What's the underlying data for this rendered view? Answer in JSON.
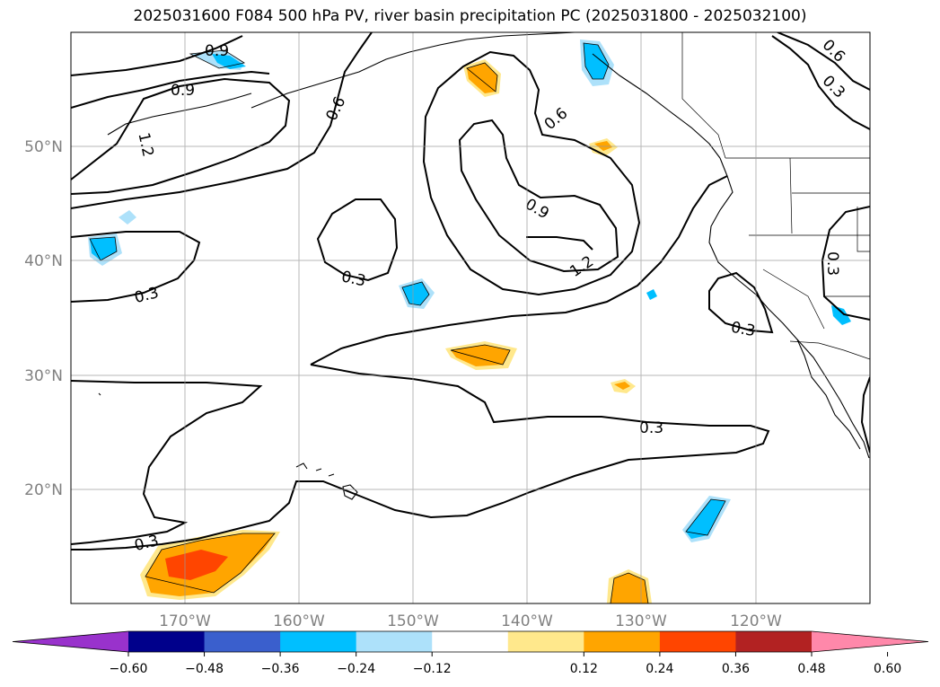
{
  "title": "2025031600 F084 500 hPa PV, river basin precipitation PC (2025031800 - 2025032100)",
  "map": {
    "projection": "PlateCarree",
    "lon_range": [
      -180,
      -110
    ],
    "lat_range": [
      10,
      60
    ],
    "lat_ticks": [
      "50°N",
      "40°N",
      "30°N",
      "20°N"
    ],
    "lon_ticks": [
      "170°W",
      "160°W",
      "150°W",
      "140°W",
      "130°W",
      "120°W"
    ],
    "grid": true
  },
  "pv_contour_labels": [
    "0.9",
    "0.9",
    "1.2",
    "0.6",
    "0.6",
    "0.6",
    "0.3",
    "0.9",
    "1.2",
    "0.3",
    "0.3",
    "0.3",
    "0.3",
    "0.3",
    "0.3"
  ],
  "colorbar": {
    "ticks": [
      "−0.60",
      "−0.48",
      "−0.36",
      "−0.24",
      "−0.12",
      "0.12",
      "0.24",
      "0.36",
      "0.48",
      "0.60"
    ],
    "colors": [
      "#9932CC",
      "#00008B",
      "#3A5FCD",
      "#00BFFF",
      "#ADE1FA",
      "#FFFFFF",
      "#FFE88C",
      "#FFA500",
      "#FF4500",
      "#B22222",
      "#FF88AA"
    ],
    "extend": "both"
  }
}
